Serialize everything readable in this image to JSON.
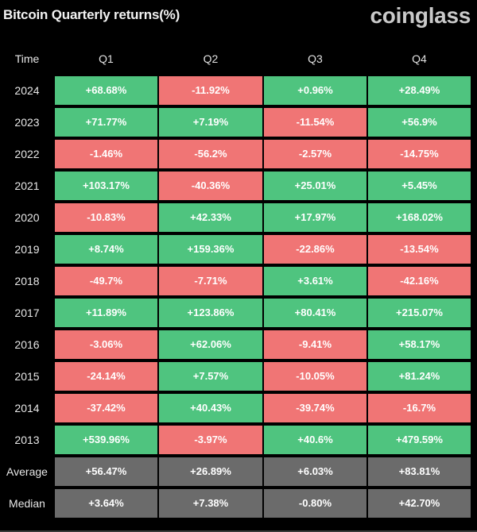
{
  "header": {
    "title": "Bitcoin Quarterly returns(%)",
    "brand": "coinglass"
  },
  "colors": {
    "positive": "#4fc47f",
    "negative": "#f07575",
    "summary": "#6b6b6b",
    "background": "#000000"
  },
  "chart_data": {
    "type": "table",
    "title": "Bitcoin Quarterly returns(%)",
    "columns": [
      "Time",
      "Q1",
      "Q2",
      "Q3",
      "Q4"
    ],
    "rows": [
      {
        "label": "2024",
        "values": [
          "+68.68%",
          "-11.92%",
          "+0.96%",
          "+28.49%"
        ],
        "numeric": [
          68.68,
          -11.92,
          0.96,
          28.49
        ]
      },
      {
        "label": "2023",
        "values": [
          "+71.77%",
          "+7.19%",
          "-11.54%",
          "+56.9%"
        ],
        "numeric": [
          71.77,
          7.19,
          -11.54,
          56.9
        ]
      },
      {
        "label": "2022",
        "values": [
          "-1.46%",
          "-56.2%",
          "-2.57%",
          "-14.75%"
        ],
        "numeric": [
          -1.46,
          -56.2,
          -2.57,
          -14.75
        ]
      },
      {
        "label": "2021",
        "values": [
          "+103.17%",
          "-40.36%",
          "+25.01%",
          "+5.45%"
        ],
        "numeric": [
          103.17,
          -40.36,
          25.01,
          5.45
        ]
      },
      {
        "label": "2020",
        "values": [
          "-10.83%",
          "+42.33%",
          "+17.97%",
          "+168.02%"
        ],
        "numeric": [
          -10.83,
          42.33,
          17.97,
          168.02
        ]
      },
      {
        "label": "2019",
        "values": [
          "+8.74%",
          "+159.36%",
          "-22.86%",
          "-13.54%"
        ],
        "numeric": [
          8.74,
          159.36,
          -22.86,
          -13.54
        ]
      },
      {
        "label": "2018",
        "values": [
          "-49.7%",
          "-7.71%",
          "+3.61%",
          "-42.16%"
        ],
        "numeric": [
          -49.7,
          -7.71,
          3.61,
          -42.16
        ]
      },
      {
        "label": "2017",
        "values": [
          "+11.89%",
          "+123.86%",
          "+80.41%",
          "+215.07%"
        ],
        "numeric": [
          11.89,
          123.86,
          80.41,
          215.07
        ]
      },
      {
        "label": "2016",
        "values": [
          "-3.06%",
          "+62.06%",
          "-9.41%",
          "+58.17%"
        ],
        "numeric": [
          -3.06,
          62.06,
          -9.41,
          58.17
        ]
      },
      {
        "label": "2015",
        "values": [
          "-24.14%",
          "+7.57%",
          "-10.05%",
          "+81.24%"
        ],
        "numeric": [
          -24.14,
          7.57,
          -10.05,
          81.24
        ]
      },
      {
        "label": "2014",
        "values": [
          "-37.42%",
          "+40.43%",
          "-39.74%",
          "-16.7%"
        ],
        "numeric": [
          -37.42,
          40.43,
          -39.74,
          -16.7
        ]
      },
      {
        "label": "2013",
        "values": [
          "+539.96%",
          "-3.97%",
          "+40.6%",
          "+479.59%"
        ],
        "numeric": [
          539.96,
          -3.97,
          40.6,
          479.59
        ]
      }
    ],
    "summary": [
      {
        "label": "Average",
        "values": [
          "+56.47%",
          "+26.89%",
          "+6.03%",
          "+83.81%"
        ],
        "numeric": [
          56.47,
          26.89,
          6.03,
          83.81
        ]
      },
      {
        "label": "Median",
        "values": [
          "+3.64%",
          "+7.38%",
          "-0.80%",
          "+42.70%"
        ],
        "numeric": [
          3.64,
          7.38,
          -0.8,
          42.7
        ]
      }
    ]
  }
}
